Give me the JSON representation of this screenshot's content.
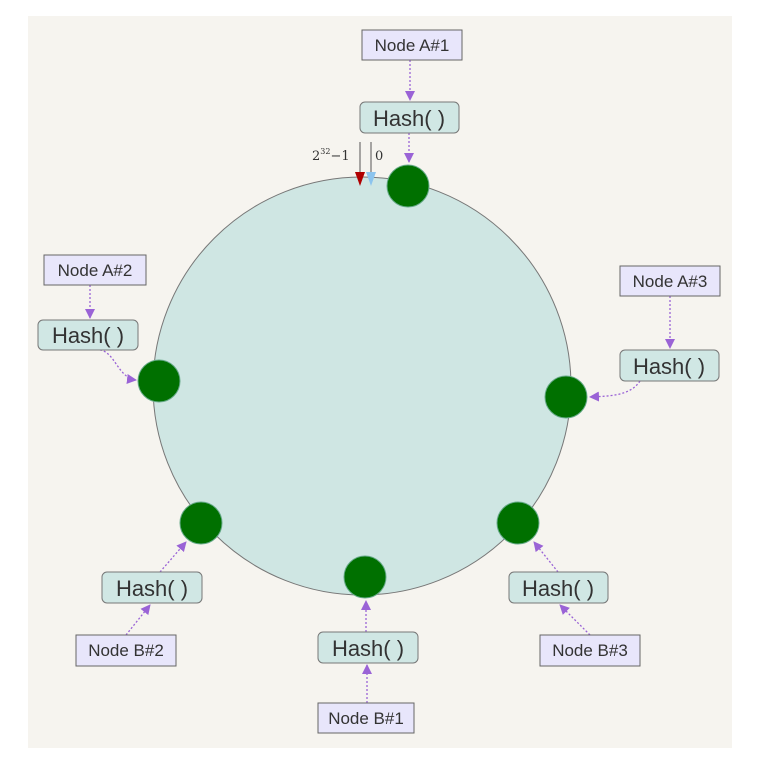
{
  "colors": {
    "background": "#f6f4ef",
    "ring": "#cfe6e3",
    "node_dot": "#007000",
    "arrow": "#9a63d6",
    "node_box": "#e8e6fb",
    "hash_box": "#d0e7e4",
    "max_marker": "#b00000",
    "zero_marker": "#8cc4ee"
  },
  "ring": {
    "max_label_base": "2",
    "max_label_exp": "32",
    "max_label_suffix": "−1",
    "zero_label": "0"
  },
  "nodes": {
    "a1": {
      "name": "Node A#1",
      "hash": "Hash( )"
    },
    "a2": {
      "name": "Node A#2",
      "hash": "Hash( )"
    },
    "a3": {
      "name": "Node A#3",
      "hash": "Hash( )"
    },
    "b1": {
      "name": "Node B#1",
      "hash": "Hash( )"
    },
    "b2": {
      "name": "Node B#2",
      "hash": "Hash( )"
    },
    "b3": {
      "name": "Node B#3",
      "hash": "Hash( )"
    }
  }
}
